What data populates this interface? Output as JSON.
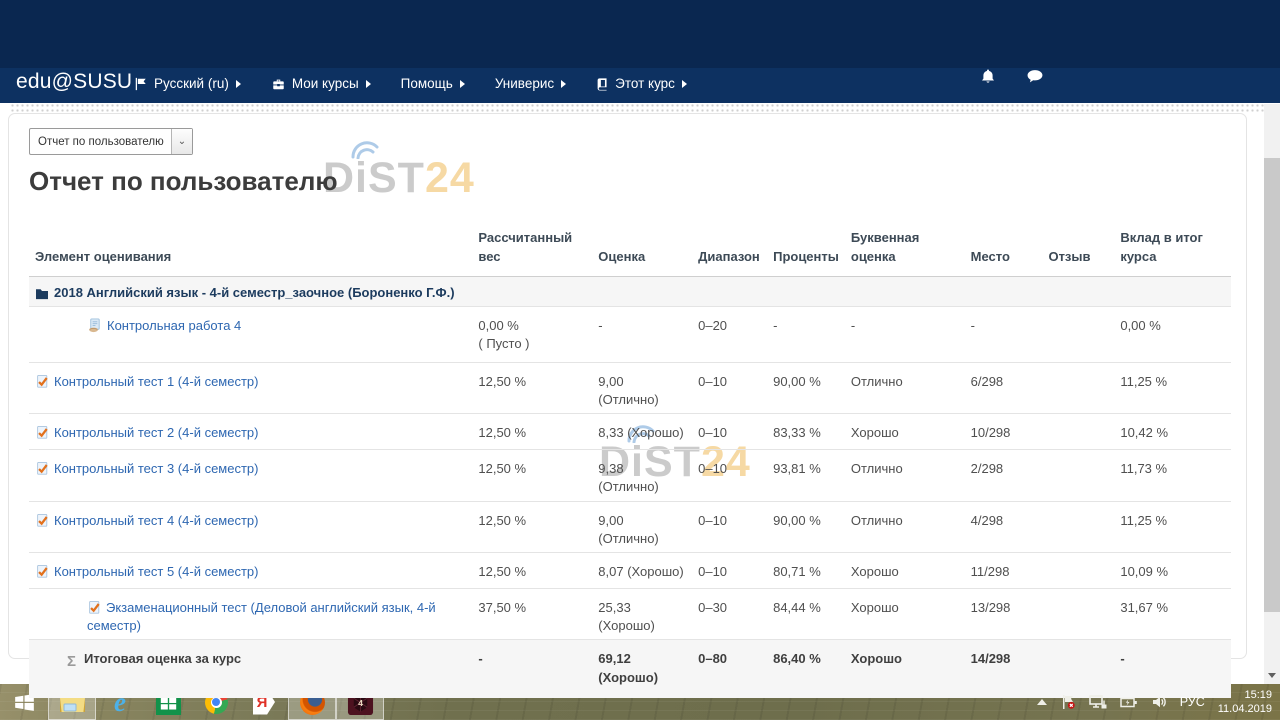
{
  "navbar": {
    "brand": "edu@SUSU",
    "items": [
      {
        "label": "Русский (ru)",
        "icon": "flag-icon",
        "has_caret": true
      },
      {
        "label": "Мои курсы",
        "icon": "briefcase-icon",
        "has_caret": true
      },
      {
        "label": "Помощь",
        "icon": null,
        "has_caret": true
      },
      {
        "label": "Универис",
        "icon": null,
        "has_caret": true
      },
      {
        "label": "Этот курс",
        "icon": "book-icon",
        "has_caret": true
      }
    ]
  },
  "report_select": {
    "value": "Отчет по пользователю"
  },
  "page_title": "Отчет по пользователю",
  "watermark": {
    "gray": "DiST",
    "accent": "24"
  },
  "colors": {
    "navbar_navy": "#0a2750",
    "link_blue": "#2e67b1",
    "watermark_gray": "#cbcbcb",
    "watermark_accent": "#f6d9a4"
  },
  "table": {
    "headers": [
      {
        "key": "item",
        "lines": [
          "Элемент оценивания"
        ]
      },
      {
        "key": "weight",
        "lines": [
          "Рассчитанный",
          "вес"
        ]
      },
      {
        "key": "grade",
        "lines": [
          "Оценка"
        ]
      },
      {
        "key": "range",
        "lines": [
          "Диапазон"
        ]
      },
      {
        "key": "percent",
        "lines": [
          "Проценты"
        ]
      },
      {
        "key": "letter",
        "lines": [
          "Буквенная",
          "оценка"
        ]
      },
      {
        "key": "rank",
        "lines": [
          "Место"
        ]
      },
      {
        "key": "feedback",
        "lines": [
          "Отзыв"
        ]
      },
      {
        "key": "contribution",
        "lines": [
          "Вклад в итог",
          "курса"
        ]
      }
    ],
    "category_row": {
      "label": "2018 Английский язык - 4-й семестр_заочное (Бороненко Г.Ф.)",
      "icon": "folder-icon"
    },
    "rows": [
      {
        "cls": "r-tall",
        "icon": "assignment",
        "name": "Контрольная работа 4",
        "is_link": true,
        "cells": [
          [
            "0,00 %",
            "( Пусто )"
          ],
          "-",
          "0–20",
          "-",
          "-",
          "-",
          "",
          "0,00 %"
        ]
      },
      {
        "cls": "r-quiz",
        "icon": "quiz",
        "name": "Контрольный тест 1 (4-й семестр)",
        "is_link": true,
        "cells": [
          "12,50 %",
          "9,00 (Отлично)",
          "0–10",
          "90,00 %",
          "Отлично",
          "6/298",
          "",
          "11,25 %"
        ]
      },
      {
        "cls": "r-quiz",
        "icon": "quiz",
        "name": "Контрольный тест 2 (4-й семестр)",
        "is_link": true,
        "cells": [
          "12,50 %",
          "8,33 (Хорошо)",
          "0–10",
          "83,33 %",
          "Хорошо",
          "10/298",
          "",
          "10,42 %"
        ]
      },
      {
        "cls": "r-quiz",
        "icon": "quiz",
        "name": "Контрольный тест 3 (4-й семестр)",
        "is_link": true,
        "cells": [
          "12,50 %",
          "9,38 (Отлично)",
          "0–10",
          "93,81 %",
          "Отлично",
          "2/298",
          "",
          "11,73 %"
        ]
      },
      {
        "cls": "r-quiz",
        "icon": "quiz",
        "name": "Контрольный тест 4 (4-й семестр)",
        "is_link": true,
        "cells": [
          "12,50 %",
          "9,00 (Отлично)",
          "0–10",
          "90,00 %",
          "Отлично",
          "4/298",
          "",
          "11,25 %"
        ]
      },
      {
        "cls": "r-quiz",
        "icon": "quiz",
        "name": "Контрольный тест 5 (4-й семестр)",
        "is_link": true,
        "cells": [
          "12,50 %",
          "8,07 (Хорошо)",
          "0–10",
          "80,71 %",
          "Хорошо",
          "11/298",
          "",
          "10,09 %"
        ]
      },
      {
        "cls": "r-exam",
        "icon": "quiz",
        "name": "Экзаменационный тест (Деловой английский язык, 4-й семестр)",
        "is_link": true,
        "cells": [
          "37,50 %",
          "25,33 (Хорошо)",
          "0–30",
          "84,44 %",
          "Хорошо",
          "13/298",
          "",
          "31,67 %"
        ]
      },
      {
        "cls": "r-total",
        "icon": "sigma",
        "name": "Итоговая оценка за курс",
        "is_link": false,
        "cells": [
          "-",
          [
            "69,12",
            "(Хорошо)"
          ],
          "0–80",
          "86,40 %",
          "Хорошо",
          "14/298",
          "",
          "-"
        ]
      }
    ]
  },
  "icon_glyphs": {
    "ie": "e",
    "yandex": "Я",
    "sigma": "Σ"
  },
  "taskbar": {
    "apps": [
      {
        "id": "start",
        "active": false
      },
      {
        "id": "explorer",
        "active": true
      },
      {
        "id": "ie",
        "active": false
      },
      {
        "id": "store",
        "active": false
      },
      {
        "id": "chrome",
        "active": false
      },
      {
        "id": "yandex",
        "active": false
      },
      {
        "id": "firefox",
        "active": true
      },
      {
        "id": "archive",
        "active": true
      }
    ]
  },
  "tray": {
    "lang": "РУС",
    "time": "15:19",
    "date": "11.04.2019"
  }
}
